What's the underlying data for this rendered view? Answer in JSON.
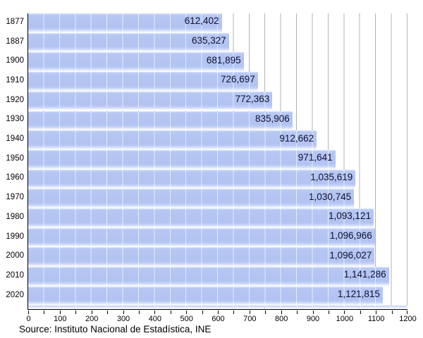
{
  "chart_data": {
    "type": "bar",
    "orientation": "horizontal",
    "title": "",
    "xlabel": "",
    "ylabel": "",
    "categories": [
      "1877",
      "1887",
      "1900",
      "1910",
      "1920",
      "1930",
      "1940",
      "1950",
      "1960",
      "1970",
      "1980",
      "1990",
      "2000",
      "2010",
      "2020"
    ],
    "values": [
      612402,
      635327,
      681895,
      726697,
      772363,
      835906,
      912662,
      971641,
      1035619,
      1030745,
      1093121,
      1096966,
      1096027,
      1141286,
      1121815
    ],
    "value_labels": [
      "612,402",
      "635,327",
      "681,895",
      "726,697",
      "772,363",
      "835,906",
      "912,662",
      "971,641",
      "1,035,619",
      "1,030,745",
      "1,093,121",
      "1,096,966",
      "1,096,027",
      "1,141,286",
      "1,121,815"
    ],
    "values_per_axis_unit": 1000,
    "x_axis": {
      "min": 0,
      "max": 1200,
      "major_tick_interval": 100,
      "minor_tick_interval": 50,
      "tick_labels": [
        "0",
        "100",
        "200",
        "300",
        "400",
        "500",
        "600",
        "700",
        "800",
        "900",
        "1000",
        "1100",
        "1200"
      ]
    },
    "grid": true,
    "legend": false
  },
  "source_note": "Source: Instituto Nacional de Estadística, INE",
  "colors": {
    "background": "#ffffff",
    "bar_fill": "#b5c6f3",
    "bar_edge_light": "#eef3fe",
    "gridline": "#b3b3b3",
    "axis": "#000000",
    "value_text": "#0f0f2d",
    "label_text": "#000000"
  }
}
